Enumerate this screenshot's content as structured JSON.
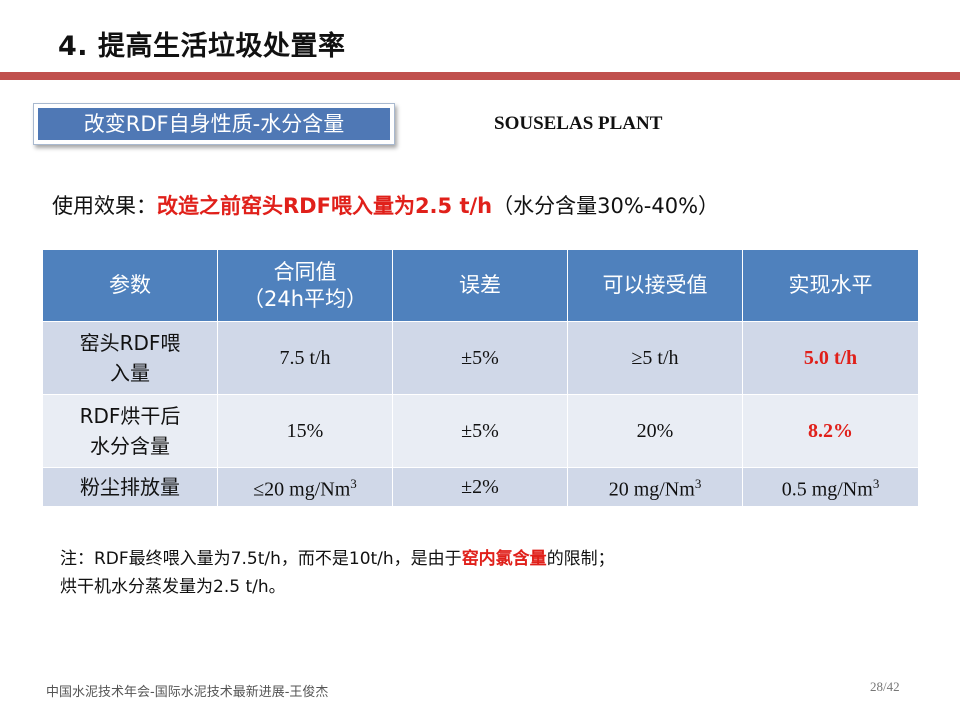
{
  "title": "4. 提高生活垃圾处置率",
  "section_label": "改变RDF自身性质-水分含量",
  "plant_name": "SOUSELAS PLANT",
  "effect": {
    "prefix": "使用效果：",
    "highlight": "改造之前窑头RDF喂入量为2.5 t/h",
    "suffix": "（水分含量30%-40%）"
  },
  "table": {
    "headers": [
      "参数",
      "合同值\n（24h平均）",
      "误差",
      "可以接受值",
      "实现水平"
    ],
    "rows": [
      [
        "窑头RDF喂\n入量",
        "7.5 t/h",
        "±5%",
        "≥5 t/h",
        "5.0 t/h"
      ],
      [
        "RDF烘干后\n水分含量",
        "15%",
        "±5%",
        "20%",
        "8.2%"
      ],
      [
        "粉尘排放量",
        "≤20 mg/Nm3",
        "±2%",
        "20 mg/Nm3",
        "0.5 mg/Nm3"
      ]
    ],
    "highlight_color": "#e0201a",
    "header_color": "#4f81bd"
  },
  "note": {
    "line1_before": "注：RDF最终喂入量为7.5t/h，而不是10t/h，是由于",
    "line1_highlight": "窑内氯含量",
    "line1_after": "的限制；",
    "line2": "烘干机水分蒸发量为2.5 t/h。"
  },
  "footer": "中国水泥技术年会-国际水泥技术最新进展-王俊杰",
  "page_number": "28/42",
  "colors": {
    "title_rule": "#c0504d",
    "section_fill": "#4f78b5",
    "row_dark": "#d0d8e8",
    "row_light": "#e9edf4"
  }
}
